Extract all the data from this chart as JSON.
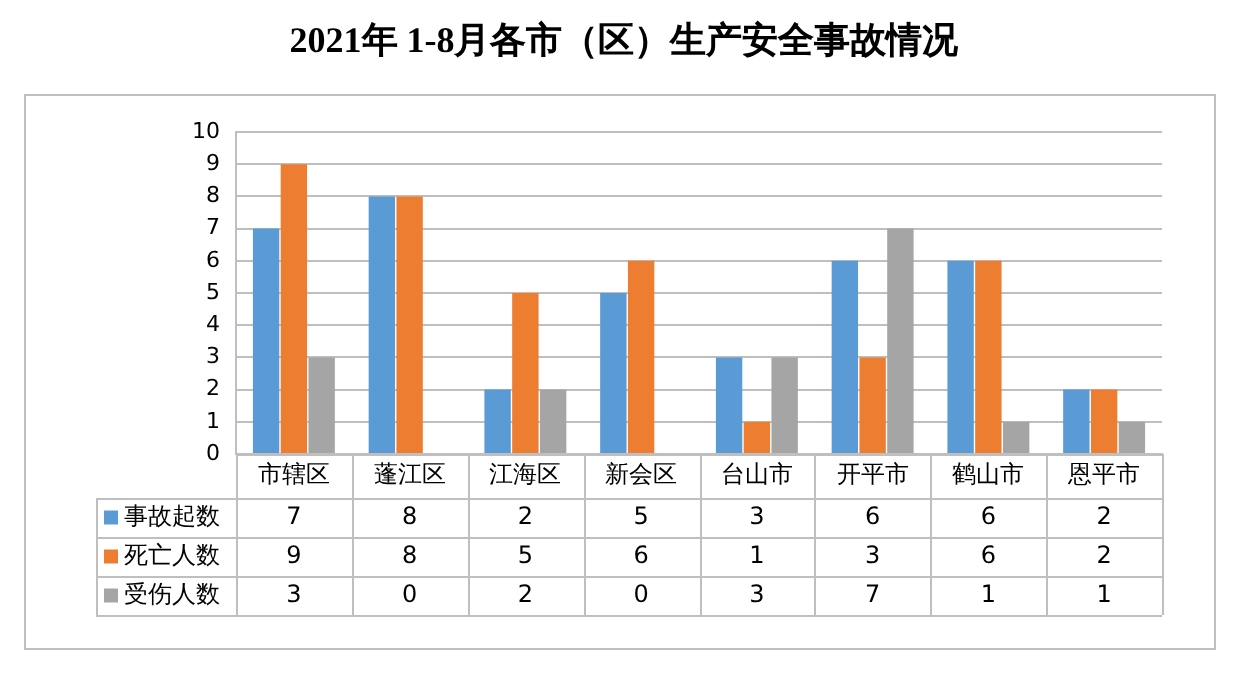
{
  "chart_data": {
    "type": "bar",
    "title": "2021年 1-8月各市（区）生产安全事故情况",
    "categories": [
      "市辖区",
      "蓬江区",
      "江海区",
      "新会区",
      "台山市",
      "开平市",
      "鹤山市",
      "恩平市"
    ],
    "series": [
      {
        "name": "事故起数",
        "color": "#5b9bd5",
        "values": [
          7,
          8,
          2,
          5,
          3,
          6,
          6,
          2
        ]
      },
      {
        "name": "死亡人数",
        "color": "#ed7d31",
        "values": [
          9,
          8,
          5,
          6,
          1,
          3,
          6,
          2
        ]
      },
      {
        "name": "受伤人数",
        "color": "#a5a5a5",
        "values": [
          3,
          0,
          2,
          0,
          3,
          7,
          1,
          1
        ]
      }
    ],
    "ylim": [
      0,
      10
    ],
    "yticks": [
      0,
      1,
      2,
      3,
      4,
      5,
      6,
      7,
      8,
      9,
      10
    ],
    "grid": "y",
    "legend": "bottom",
    "data_labels": true
  }
}
